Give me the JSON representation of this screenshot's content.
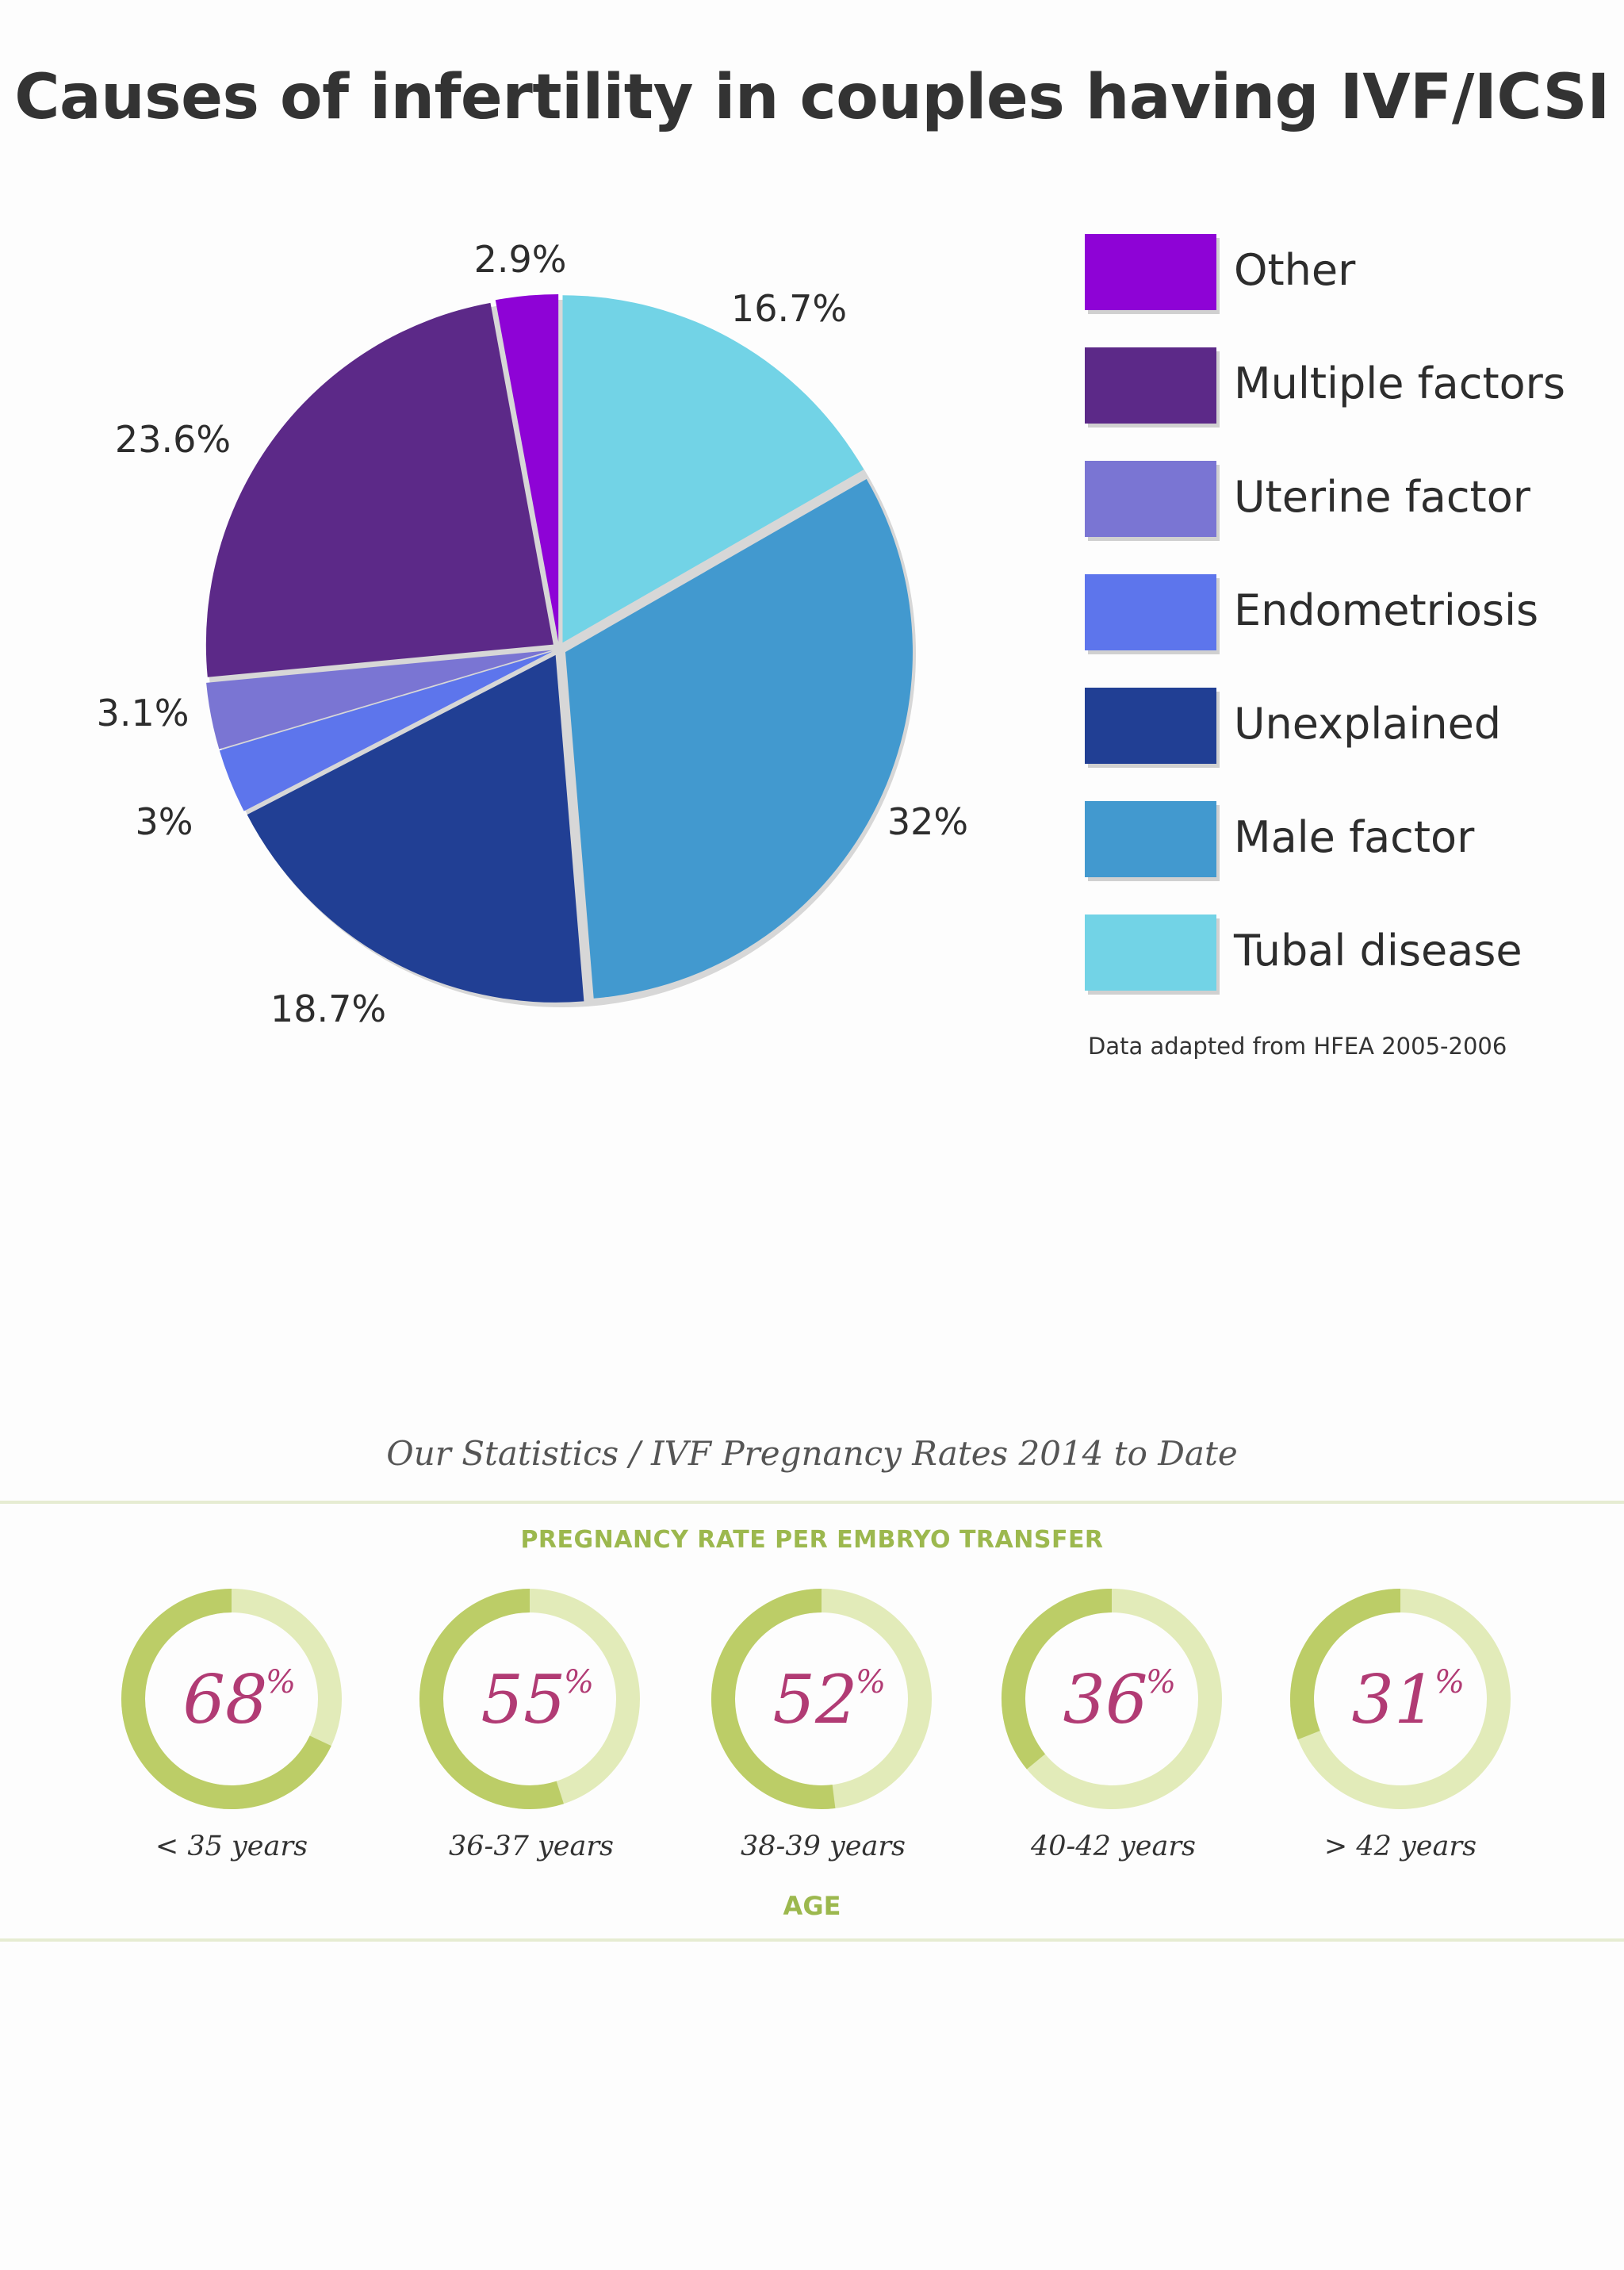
{
  "chart_data": [
    {
      "type": "pie",
      "title": "Causes of infertility in couples having IVF/ICSI",
      "slices": [
        {
          "name": "Tubal disease",
          "value": 16.7,
          "label": "16.7%",
          "color": "#72d3e6"
        },
        {
          "name": "Male factor",
          "value": 32,
          "label": "32%",
          "color": "#4299cf"
        },
        {
          "name": "Unexplained",
          "value": 18.7,
          "label": "18.7%",
          "color": "#213f94"
        },
        {
          "name": "Endometriosis",
          "value": 3,
          "label": "3%",
          "color": "#5d75ec"
        },
        {
          "name": "Uterine factor",
          "value": 3.1,
          "label": "3.1%",
          "color": "#7a75d3"
        },
        {
          "name": "Multiple factors",
          "value": 23.6,
          "label": "23.6%",
          "color": "#5c2988"
        },
        {
          "name": "Other",
          "value": 2.9,
          "label": "2.9%",
          "color": "#8e03d6"
        }
      ],
      "legend_order": [
        "Other",
        "Multiple factors",
        "Uterine factor",
        "Endometriosis",
        "Unexplained",
        "Male factor",
        "Tubal disease"
      ],
      "legend_placement": "right",
      "note": "Data adapted from HFEA 2005-2006"
    },
    {
      "type": "donut",
      "title": "Our Statistics / IVF Pregnancy Rates 2014 to Date",
      "subtitle": "PREGNANCY RATE PER EMBRYO TRANSFER",
      "xlabel": "AGE",
      "unit": "%",
      "categories": [
        "< 35 years",
        "36-37 years",
        "38-39 years",
        "40-42 years",
        "> 42 years"
      ],
      "values": [
        68,
        55,
        52,
        36,
        31
      ],
      "colors": {
        "filled": "#bccd67",
        "track": "#e2ebb9",
        "text": "#b13b74"
      }
    }
  ]
}
